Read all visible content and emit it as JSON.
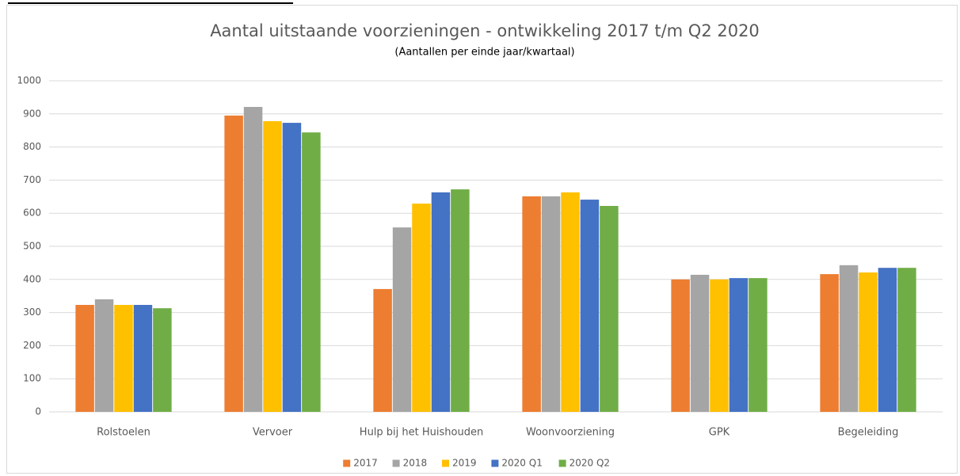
{
  "chart_data": {
    "type": "bar",
    "title": "Aantal uitstaande voorzieningen - ontwikkeling 2017 t/m Q2 2020",
    "subtitle": "(Aantallen per einde jaar/kwartaal)",
    "categories": [
      "Rolstoelen",
      "Vervoer",
      "Hulp bij het Huishouden",
      "Woonvoorziening",
      "GPK",
      "Begeleiding"
    ],
    "series": [
      {
        "name": "2017",
        "color": "#ed7d31",
        "values": [
          323,
          895,
          371,
          651,
          400,
          416
        ]
      },
      {
        "name": "2018",
        "color": "#a5a5a5",
        "values": [
          340,
          921,
          557,
          651,
          414,
          443
        ]
      },
      {
        "name": "2019",
        "color": "#ffc000",
        "values": [
          323,
          878,
          629,
          663,
          400,
          421
        ]
      },
      {
        "name": "2020 Q1",
        "color": "#4472c4",
        "values": [
          323,
          873,
          663,
          641,
          404,
          435
        ]
      },
      {
        "name": "2020 Q2",
        "color": "#70ad47",
        "values": [
          313,
          844,
          672,
          622,
          404,
          435
        ]
      }
    ],
    "ylim": [
      0,
      1000
    ],
    "yticks": [
      0,
      100,
      200,
      300,
      400,
      500,
      600,
      700,
      800,
      900,
      1000
    ],
    "grid": true,
    "legend": "bottom"
  }
}
